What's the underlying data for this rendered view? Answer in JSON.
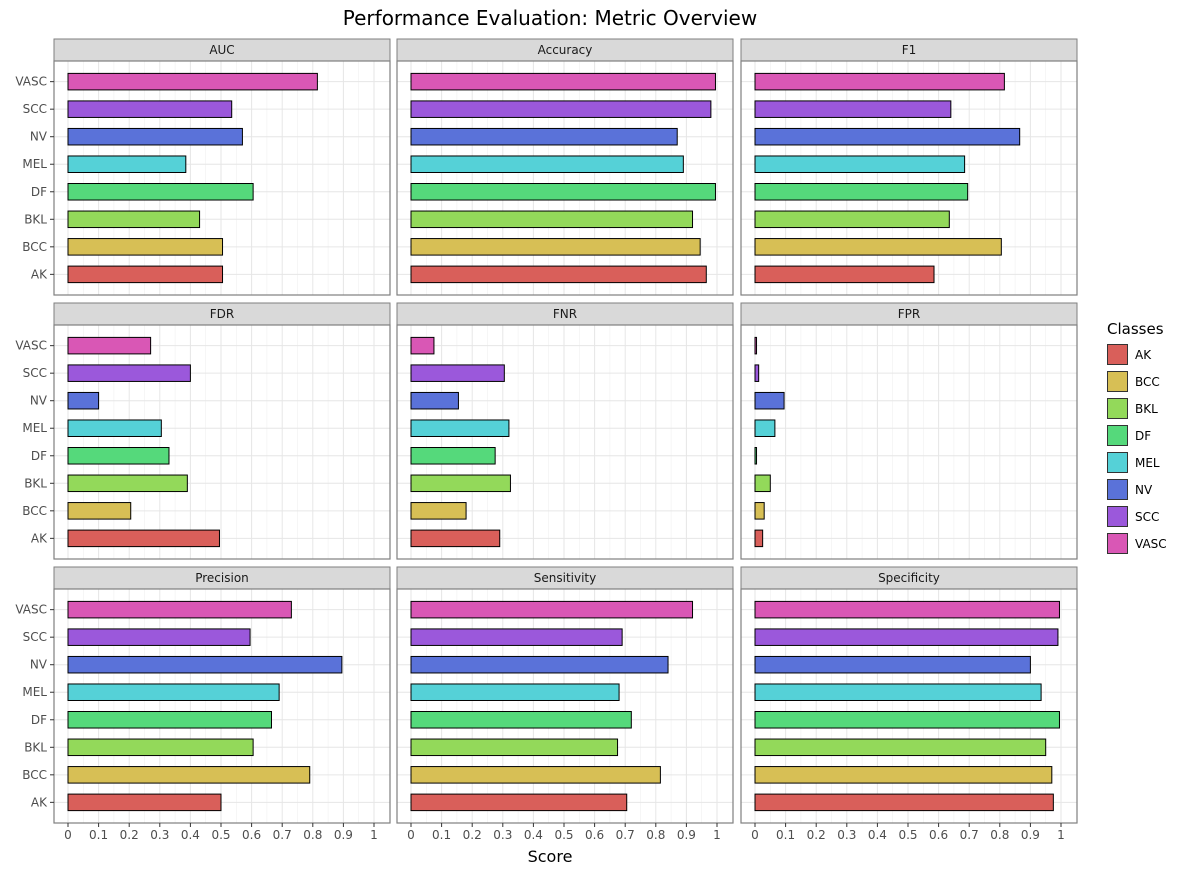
{
  "chart_data": {
    "type": "bar",
    "orientation": "horizontal",
    "title": "Performance Evaluation: Metric Overview",
    "xlabel": "Score",
    "ylabel": "",
    "xlim": [
      0,
      1
    ],
    "x_ticks": [
      "0",
      "0.1",
      "0.2",
      "0.3",
      "0.4",
      "0.5",
      "0.6",
      "0.7",
      "0.8",
      "0.9",
      "1"
    ],
    "grid": true,
    "legend_title": "Classes",
    "legend_position": "right",
    "categories": [
      "AK",
      "BCC",
      "BKL",
      "DF",
      "MEL",
      "NV",
      "SCC",
      "VASC"
    ],
    "colors": {
      "AK": "#d95f5a",
      "BCC": "#d7bf55",
      "BKL": "#93d95a",
      "DF": "#55d97b",
      "MEL": "#55d1d7",
      "NV": "#5a72d9",
      "SCC": "#9b58db",
      "VASC": "#d957b5"
    },
    "facets": [
      {
        "name": "AUC",
        "values": [
          0.505,
          0.505,
          0.43,
          0.605,
          0.385,
          0.57,
          0.535,
          0.815
        ]
      },
      {
        "name": "Accuracy",
        "values": [
          0.965,
          0.945,
          0.92,
          0.995,
          0.89,
          0.87,
          0.98,
          0.995
        ]
      },
      {
        "name": "F1",
        "values": [
          0.585,
          0.805,
          0.635,
          0.695,
          0.685,
          0.865,
          0.64,
          0.815
        ]
      },
      {
        "name": "FDR",
        "values": [
          0.495,
          0.205,
          0.39,
          0.33,
          0.305,
          0.1,
          0.4,
          0.27
        ]
      },
      {
        "name": "FNR",
        "values": [
          0.29,
          0.18,
          0.325,
          0.275,
          0.32,
          0.155,
          0.305,
          0.075
        ]
      },
      {
        "name": "FPR",
        "values": [
          0.025,
          0.03,
          0.05,
          0.005,
          0.065,
          0.095,
          0.012,
          0.005
        ]
      },
      {
        "name": "Precision",
        "values": [
          0.5,
          0.79,
          0.605,
          0.665,
          0.69,
          0.895,
          0.595,
          0.73
        ]
      },
      {
        "name": "Sensitivity",
        "values": [
          0.705,
          0.815,
          0.675,
          0.72,
          0.68,
          0.84,
          0.69,
          0.92
        ]
      },
      {
        "name": "Specificity",
        "values": [
          0.975,
          0.97,
          0.95,
          0.995,
          0.935,
          0.9,
          0.99,
          0.995
        ]
      }
    ]
  }
}
